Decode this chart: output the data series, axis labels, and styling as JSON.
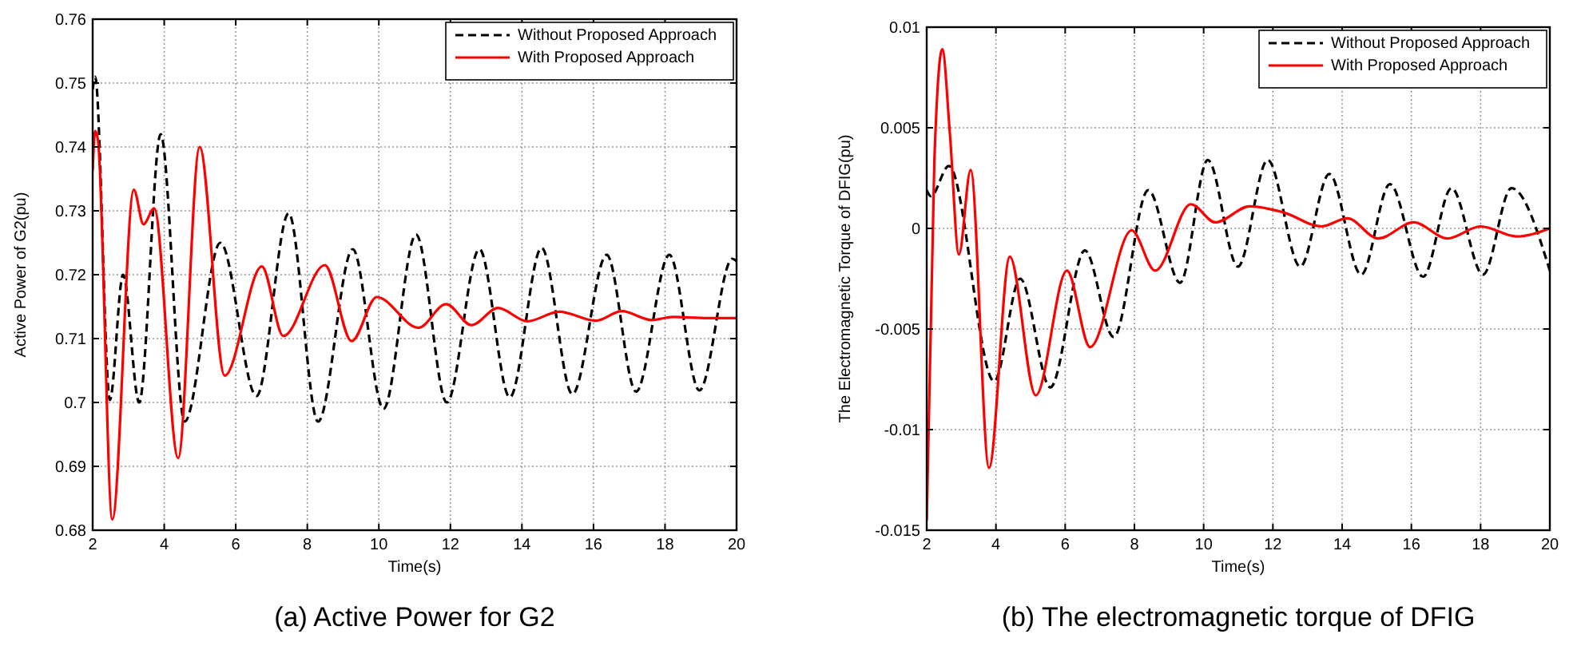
{
  "chart_data": [
    {
      "type": "line",
      "title": "(a) Active Power for G2",
      "xlabel": "Time(s)",
      "ylabel": "Active Power of G2(pu)",
      "xlim": [
        2,
        20
      ],
      "xticks": [
        2,
        4,
        6,
        8,
        10,
        12,
        14,
        16,
        18,
        20
      ],
      "ylim": [
        0.68,
        0.76
      ],
      "yticks": [
        0.68,
        0.69,
        0.7,
        0.71,
        0.72,
        0.73,
        0.74,
        0.75,
        0.76
      ],
      "grid": true,
      "legend": "top right",
      "series": [
        {
          "name": "Without Proposed Approach",
          "color": "#000000",
          "line_style": "dashed",
          "x": [
            2,
            2.07,
            2.48,
            2.85,
            3.3,
            3.9,
            4.57,
            5.57,
            6.58,
            7.48,
            8.3,
            9.27,
            10.13,
            11.04,
            11.9,
            12.81,
            13.66,
            14.55,
            15.41,
            16.37,
            17.19,
            18.12,
            18.96,
            19.88,
            20
          ],
          "values": [
            0.749,
            0.751,
            0.7004,
            0.72,
            0.7,
            0.742,
            0.697,
            0.725,
            0.701,
            0.7296,
            0.697,
            0.724,
            0.699,
            0.7263,
            0.7,
            0.724,
            0.7008,
            0.7242,
            0.7013,
            0.7231,
            0.7017,
            0.7231,
            0.7019,
            0.7225,
            0.7221
          ]
        },
        {
          "name": "With Proposed Approach",
          "color": "#ff0000",
          "line_style": "solid",
          "x": [
            2,
            2.07,
            2.15,
            2.55,
            3.15,
            3.42,
            3.72,
            4.39,
            4.99,
            5.69,
            6.73,
            7.33,
            8.49,
            9.24,
            9.94,
            11.11,
            11.88,
            12.59,
            13.33,
            14.15,
            15.04,
            16.07,
            16.79,
            17.63,
            18.22,
            19.19,
            20
          ],
          "values": [
            0.7363,
            0.7425,
            0.741,
            0.6817,
            0.7333,
            0.7279,
            0.7304,
            0.6913,
            0.74,
            0.7042,
            0.7213,
            0.7104,
            0.7215,
            0.7096,
            0.7165,
            0.7117,
            0.7154,
            0.7121,
            0.7148,
            0.7127,
            0.7142,
            0.7128,
            0.7143,
            0.7129,
            0.7134,
            0.7132,
            0.7132
          ]
        }
      ]
    },
    {
      "type": "line",
      "title": "(b) The electromagnetic torque of DFIG",
      "xlabel": "Time(s)",
      "ylabel": "The Electromagnetic Torque of DFIG(pu)",
      "xlim": [
        2,
        20
      ],
      "xticks": [
        2,
        4,
        6,
        8,
        10,
        12,
        14,
        16,
        18,
        20
      ],
      "ylim": [
        -0.015,
        0.01
      ],
      "yticks": [
        -0.015,
        -0.01,
        -0.005,
        0,
        0.005,
        0.01
      ],
      "grid": true,
      "legend": "top right",
      "series": [
        {
          "name": "Without Proposed Approach",
          "color": "#000000",
          "line_style": "dashed",
          "x": [
            2,
            2.12,
            2.64,
            3.95,
            4.7,
            5.57,
            6.57,
            7.4,
            8.4,
            9.32,
            10.12,
            10.99,
            11.85,
            12.79,
            13.63,
            14.55,
            15.38,
            16.34,
            17.16,
            18.07,
            18.89,
            20
          ],
          "values": [
            0.0019,
            0.0016,
            0.0031,
            -0.0076,
            -0.0025,
            -0.0079,
            -0.0011,
            -0.0054,
            0.0019,
            -0.0027,
            0.0034,
            -0.0019,
            0.0034,
            -0.0019,
            0.0027,
            -0.0023,
            0.0022,
            -0.0024,
            0.002,
            -0.0023,
            0.002,
            -0.0021
          ]
        },
        {
          "name": "With Proposed Approach",
          "color": "#ff0000",
          "line_style": "solid",
          "x": [
            2,
            2.22,
            2.45,
            2.67,
            2.93,
            3.27,
            3.8,
            4.4,
            5.15,
            6.05,
            6.72,
            7.92,
            8.6,
            9.63,
            10.34,
            11.33,
            12.3,
            13.4,
            14.15,
            15.04,
            16.07,
            17.04,
            18,
            19.04,
            20
          ],
          "values": [
            -0.0145,
            0.0033,
            0.0089,
            0.0047,
            -0.0013,
            0.0029,
            -0.0119,
            -0.0014,
            -0.0083,
            -0.0021,
            -0.0059,
            -0.0001,
            -0.0021,
            0.0012,
            0.0003,
            0.0011,
            0.0008,
            0.0001,
            0.0005,
            -0.0005,
            0.0003,
            -0.0005,
            0.0001,
            -0.0004,
            0
          ]
        }
      ]
    }
  ]
}
